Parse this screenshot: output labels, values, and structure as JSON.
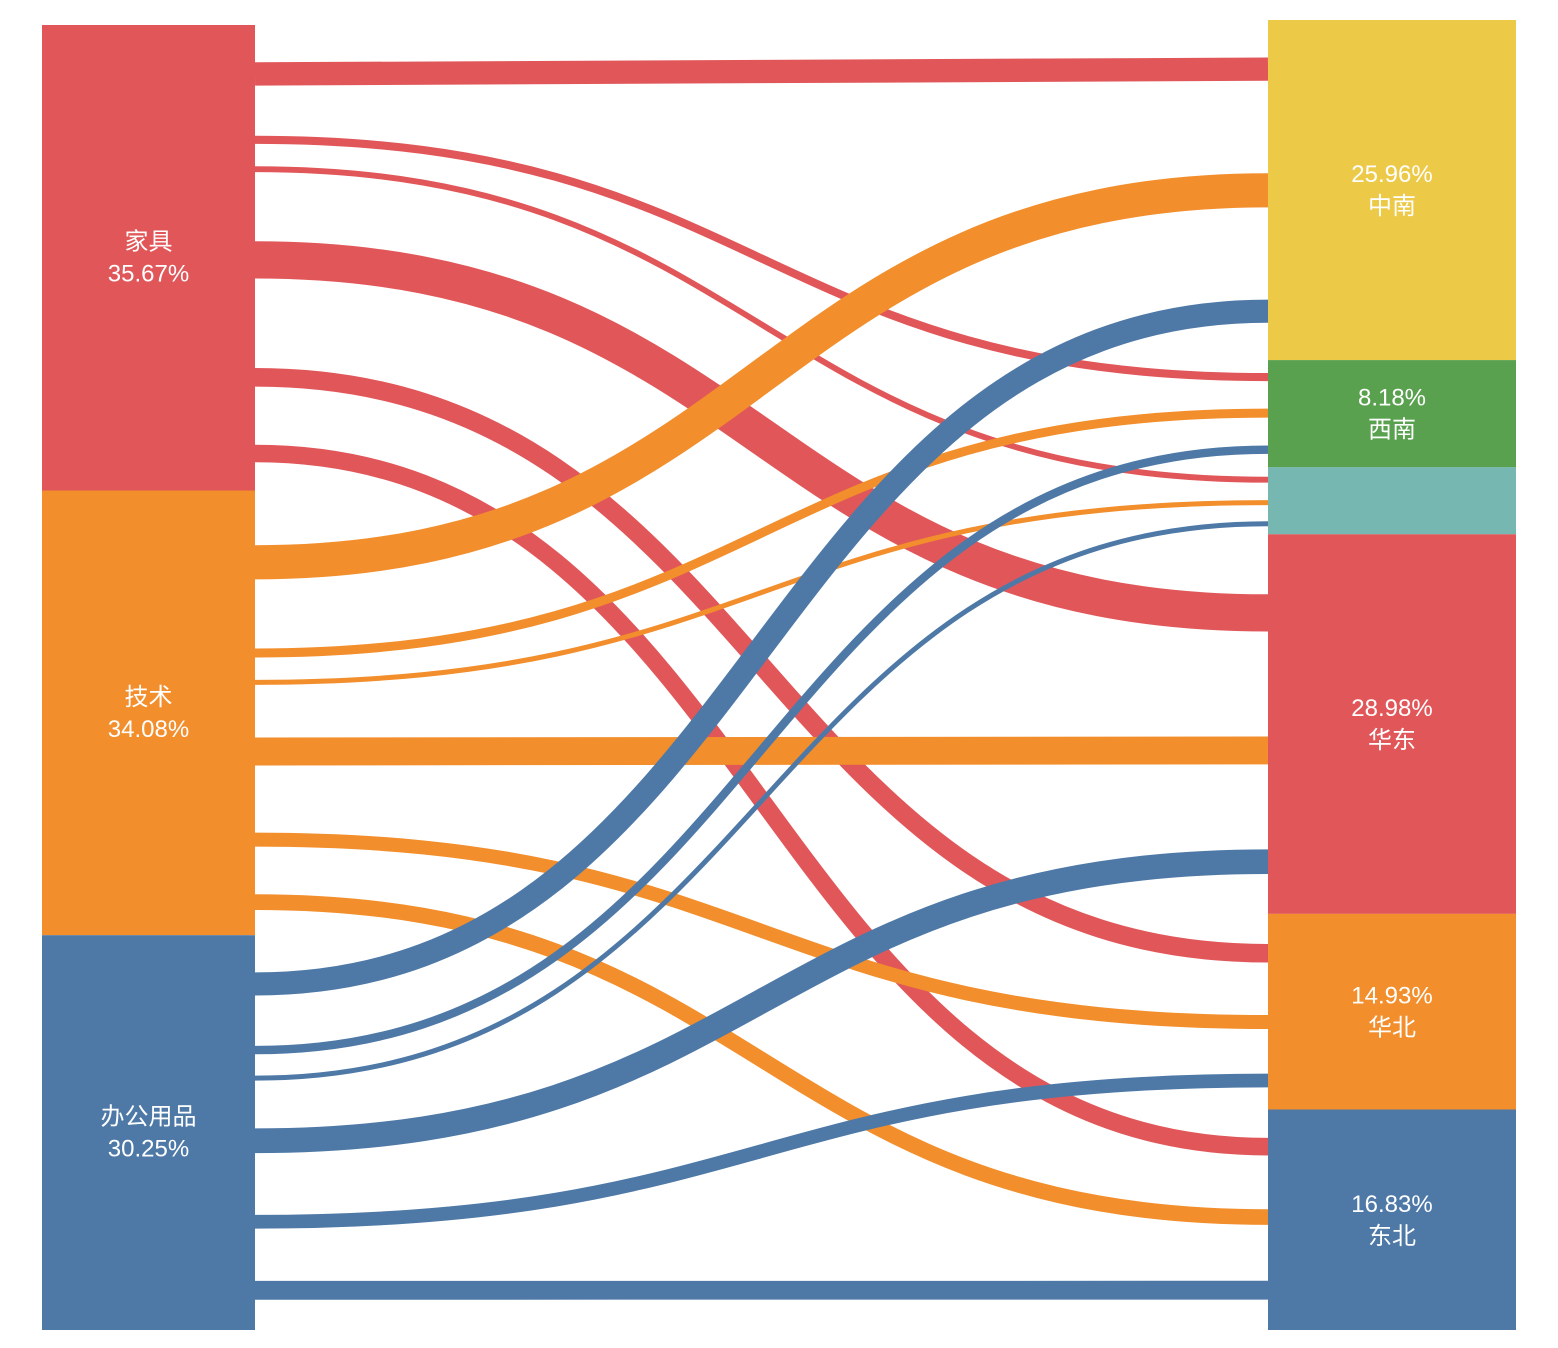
{
  "chart_data": {
    "type": "sankey",
    "title": "",
    "value_unit": "percent",
    "background_color": "#ffffff",
    "label_text_color": "#ffffff",
    "nodes": [
      {
        "id": "furniture",
        "name": "家具",
        "percent": 35.67,
        "percent_label": "35.67%",
        "side": "left",
        "color": "#e15759",
        "lines": [
          "家具",
          "35.67%"
        ]
      },
      {
        "id": "technology",
        "name": "技术",
        "percent": 34.08,
        "percent_label": "34.08%",
        "side": "left",
        "color": "#f28e2b",
        "lines": [
          "技术",
          "34.08%"
        ]
      },
      {
        "id": "office-supplies",
        "name": "办公用品",
        "percent": 30.25,
        "percent_label": "30.25%",
        "side": "left",
        "color": "#4e79a7",
        "lines": [
          "办公用品",
          "30.25%"
        ]
      },
      {
        "id": "zhongnan",
        "name": "中南",
        "percent": 25.96,
        "percent_label": "25.96%",
        "side": "right",
        "color": "#edc948",
        "lines": [
          "25.96%",
          "中南"
        ]
      },
      {
        "id": "xinan",
        "name": "西南",
        "percent": 8.18,
        "percent_label": "8.18%",
        "side": "right",
        "color": "#59a14f",
        "lines": [
          "8.18%",
          "西南"
        ]
      },
      {
        "id": "unlabeled-region",
        "name": "",
        "percent": 5.12,
        "percent_label": "",
        "side": "right",
        "color": "#76b7b2",
        "lines": []
      },
      {
        "id": "huadong",
        "name": "华东",
        "percent": 28.98,
        "percent_label": "28.98%",
        "side": "right",
        "color": "#e15759",
        "lines": [
          "28.98%",
          "华东"
        ]
      },
      {
        "id": "huabei",
        "name": "华北",
        "percent": 14.93,
        "percent_label": "14.93%",
        "side": "right",
        "color": "#f28e2b",
        "lines": [
          "14.93%",
          "华北"
        ]
      },
      {
        "id": "dongbei",
        "name": "东北",
        "percent": 16.83,
        "percent_label": "16.83%",
        "side": "right",
        "color": "#4e79a7",
        "lines": [
          "16.83%",
          "东北"
        ]
      }
    ],
    "links": [
      {
        "source": "furniture",
        "target": "zhongnan",
        "value": 7.5
      },
      {
        "source": "furniture",
        "target": "xinan",
        "value": 2.6
      },
      {
        "source": "furniture",
        "target": "unlabeled-region",
        "value": 1.9
      },
      {
        "source": "furniture",
        "target": "huadong",
        "value": 12.0
      },
      {
        "source": "furniture",
        "target": "huabei",
        "value": 6.0
      },
      {
        "source": "furniture",
        "target": "dongbei",
        "value": 5.67
      },
      {
        "source": "technology",
        "target": "zhongnan",
        "value": 11.0
      },
      {
        "source": "technology",
        "target": "xinan",
        "value": 2.9
      },
      {
        "source": "technology",
        "target": "unlabeled-region",
        "value": 1.6
      },
      {
        "source": "technology",
        "target": "huadong",
        "value": 9.0
      },
      {
        "source": "technology",
        "target": "huabei",
        "value": 4.5
      },
      {
        "source": "technology",
        "target": "dongbei",
        "value": 5.08
      },
      {
        "source": "office-supplies",
        "target": "zhongnan",
        "value": 7.46
      },
      {
        "source": "office-supplies",
        "target": "xinan",
        "value": 2.68
      },
      {
        "source": "office-supplies",
        "target": "unlabeled-region",
        "value": 1.62
      },
      {
        "source": "office-supplies",
        "target": "huadong",
        "value": 7.98
      },
      {
        "source": "office-supplies",
        "target": "huabei",
        "value": 4.43
      },
      {
        "source": "office-supplies",
        "target": "dongbei",
        "value": 6.08
      }
    ]
  }
}
